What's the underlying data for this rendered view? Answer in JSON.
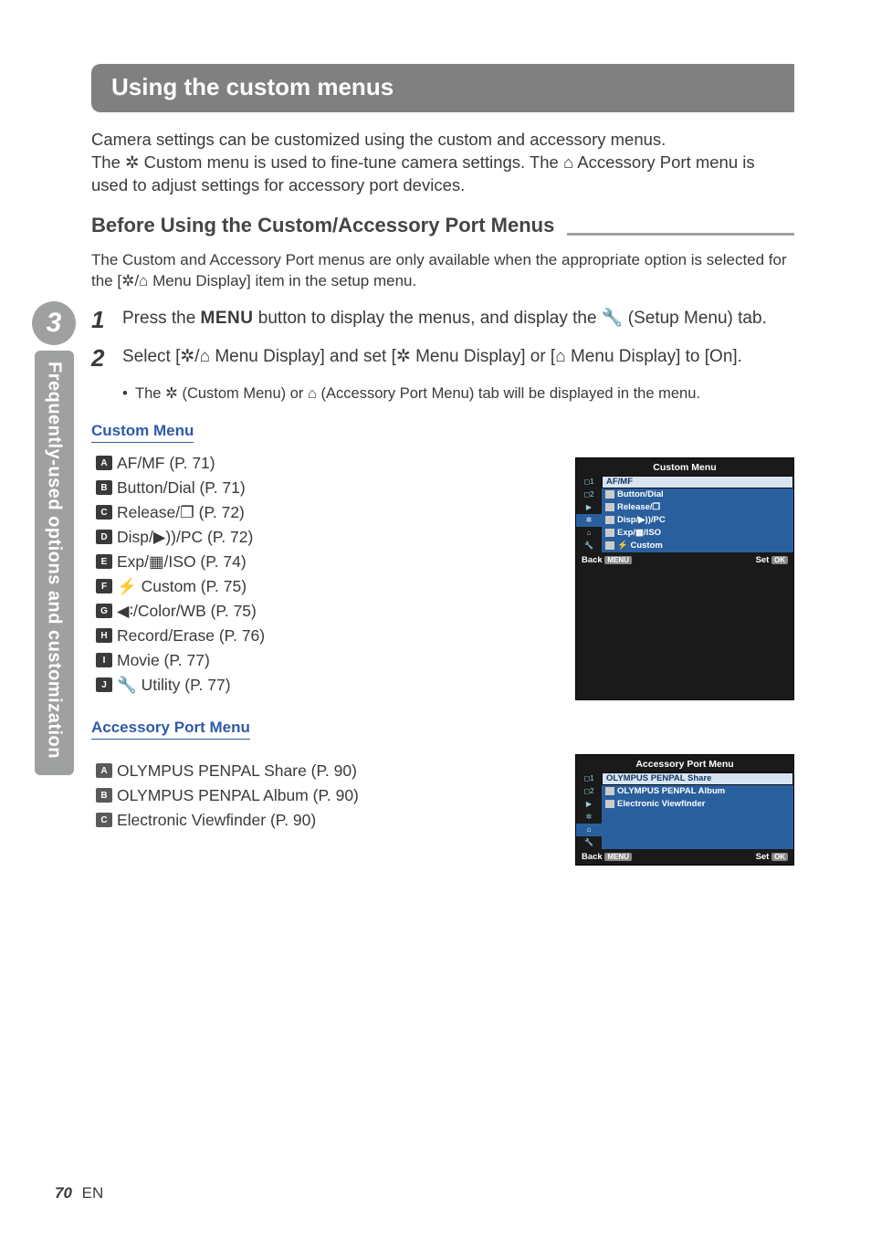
{
  "chapter": {
    "number": "3",
    "side_label": "Frequently-used options and customization"
  },
  "heading": "Using the custom menus",
  "intro_line1": "Camera settings can be customized using the custom and accessory menus.",
  "intro_line2_a": "The ",
  "intro_line2_b": " Custom menu is used to fine-tune camera settings. The ",
  "intro_line2_c": " Accessory Port menu is used to adjust settings for accessory port devices.",
  "subhead": "Before Using the Custom/Accessory Port Menus",
  "cond_a": "The Custom and Accessory Port menus are only available when the appropriate option is selected for the [",
  "cond_b": " Menu Display] item in the setup menu.",
  "step1": {
    "num": "1",
    "a": "Press the ",
    "menu_word": "MENU",
    "b": " button to display the menus, and display the ",
    "c": " (Setup Menu) tab."
  },
  "step2": {
    "num": "2",
    "a": "Select [",
    "b": " Menu Display] and set [",
    "c": " Menu Display] or [",
    "d": " Menu Display] to [On].",
    "bullet_a": "The ",
    "bullet_b": " (Custom Menu) or ",
    "bullet_c": " (Accessory Port Menu) tab will be displayed in the menu."
  },
  "custom_menu": {
    "label": "Custom Menu",
    "items": [
      {
        "marker": "A",
        "text": "AF/MF (P. 71)"
      },
      {
        "marker": "B",
        "text": "Button/Dial (P. 71)"
      },
      {
        "marker": "C",
        "text": "Release/❐ (P. 72)"
      },
      {
        "marker": "D",
        "text": "Disp/▶))/PC (P. 72)"
      },
      {
        "marker": "E",
        "text": "Exp/▦/ISO (P. 74)"
      },
      {
        "marker": "F",
        "text": "⚡ Custom (P. 75)"
      },
      {
        "marker": "G",
        "text": "◀∶/Color/WB (P. 75)"
      },
      {
        "marker": "H",
        "text": "Record/Erase (P. 76)"
      },
      {
        "marker": "I",
        "text": "Movie (P. 77)"
      },
      {
        "marker": "J",
        "text": "🔧 Utility (P. 77)"
      }
    ],
    "osd": {
      "title": "Custom Menu",
      "rows": [
        "AF/MF",
        "Button/Dial",
        "Release/❐",
        "Disp/▶))/PC",
        "Exp/▦/ISO",
        "⚡ Custom",
        "◀∶/Color/WB"
      ],
      "back": "Back",
      "set": "Set"
    }
  },
  "accessory_menu": {
    "label": "Accessory Port Menu",
    "items": [
      {
        "marker": "A",
        "text": "OLYMPUS PENPAL Share (P. 90)"
      },
      {
        "marker": "B",
        "text": "OLYMPUS PENPAL Album (P. 90)"
      },
      {
        "marker": "C",
        "text": "Electronic Viewfinder (P. 90)"
      }
    ],
    "osd": {
      "title": "Accessory Port Menu",
      "rows": [
        "OLYMPUS PENPAL Share",
        "OLYMPUS PENPAL Album",
        "Electronic Viewfinder"
      ],
      "back": "Back",
      "set": "Set"
    }
  },
  "page_number": "70",
  "page_lang": "EN",
  "colors": {
    "grey_tab": "#9fa0a0",
    "heading_bg": "#808080",
    "link_blue": "#2e5aa8",
    "osd_blue": "#2a5f9e",
    "osd_sel_bg": "#d8e4f2",
    "osd_sel_fg": "#12365e"
  }
}
